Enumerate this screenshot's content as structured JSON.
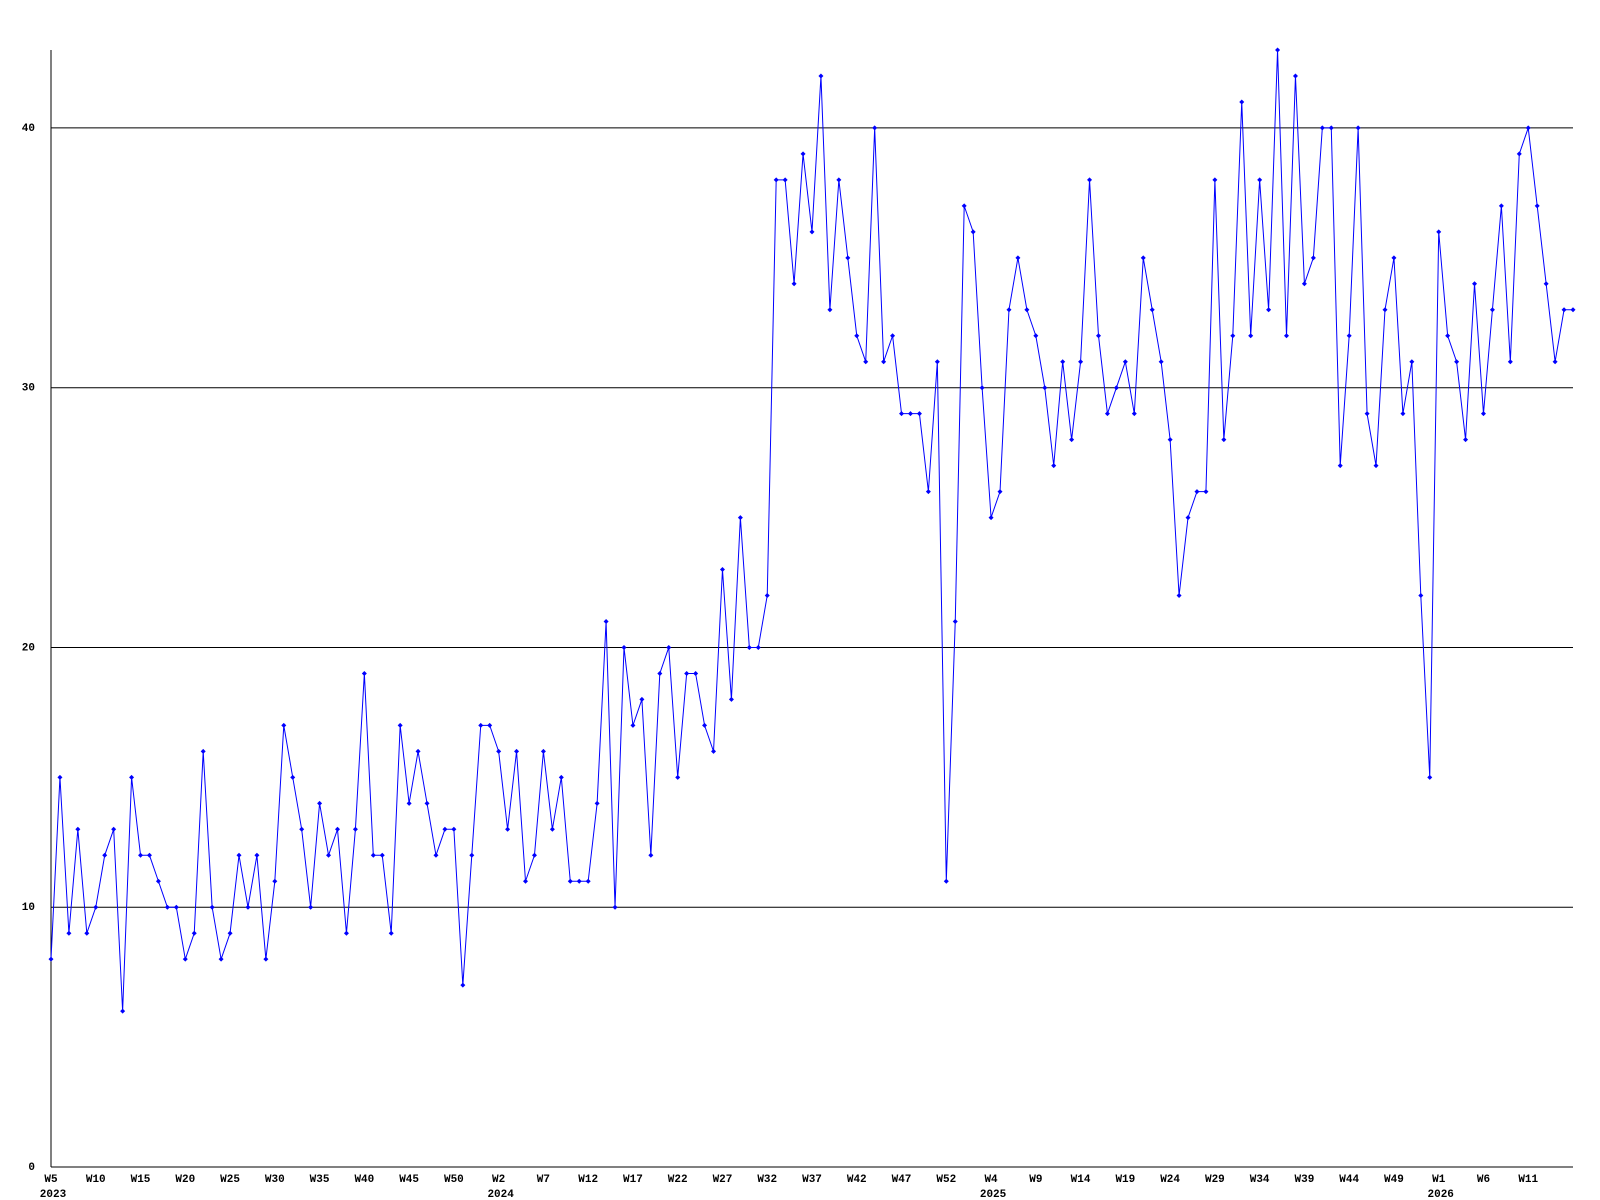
{
  "chart_data": {
    "type": "line",
    "categories": [
      "W5",
      null,
      null,
      null,
      null,
      "W10",
      null,
      null,
      null,
      null,
      "W15",
      null,
      null,
      null,
      null,
      "W20",
      null,
      null,
      null,
      null,
      "W25",
      null,
      null,
      null,
      null,
      "W30",
      null,
      null,
      null,
      null,
      "W35",
      null,
      null,
      null,
      null,
      "W40",
      null,
      null,
      null,
      null,
      "W45",
      null,
      null,
      null,
      null,
      "W50",
      null,
      null,
      null,
      null,
      "W2",
      null,
      null,
      null,
      null,
      "W7",
      null,
      null,
      null,
      null,
      "W12",
      null,
      null,
      null,
      null,
      "W17",
      null,
      null,
      null,
      null,
      "W22",
      null,
      null,
      null,
      null,
      "W27",
      null,
      null,
      null,
      null,
      "W32",
      null,
      null,
      null,
      null,
      "W37",
      null,
      null,
      null,
      null,
      "W42",
      null,
      null,
      null,
      null,
      "W47",
      null,
      null,
      null,
      null,
      "W52",
      null,
      null,
      null,
      null,
      "W4",
      null,
      null,
      null,
      null,
      "W9",
      null,
      null,
      null,
      null,
      "W14",
      null,
      null,
      null,
      null,
      "W19",
      null,
      null,
      null,
      null,
      "W24",
      null,
      null,
      null,
      null,
      "W29",
      null,
      null,
      null,
      null,
      "W34",
      null,
      null,
      null,
      null,
      "W39",
      null,
      null,
      null,
      null,
      "W44",
      null,
      null,
      null,
      null,
      "W49",
      null,
      null,
      null,
      null,
      "W1",
      null,
      null,
      null,
      null,
      "W6",
      null,
      null,
      null,
      null,
      "W11",
      null,
      null,
      null,
      null,
      null
    ],
    "category_years": [
      "2023",
      null,
      null,
      null,
      null,
      null,
      null,
      null,
      null,
      null,
      null,
      null,
      null,
      null,
      null,
      null,
      null,
      null,
      null,
      null,
      null,
      null,
      null,
      null,
      null,
      null,
      null,
      null,
      null,
      null,
      null,
      null,
      null,
      null,
      null,
      null,
      null,
      null,
      null,
      null,
      null,
      null,
      null,
      null,
      null,
      null,
      null,
      null,
      null,
      null,
      "2024",
      null,
      null,
      null,
      null,
      null,
      null,
      null,
      null,
      null,
      null,
      null,
      null,
      null,
      null,
      null,
      null,
      null,
      null,
      null,
      null,
      null,
      null,
      null,
      null,
      null,
      null,
      null,
      null,
      null,
      null,
      null,
      null,
      null,
      null,
      null,
      null,
      null,
      null,
      null,
      null,
      null,
      null,
      null,
      null,
      null,
      null,
      null,
      null,
      null,
      null,
      null,
      null,
      null,
      null,
      "2025",
      null,
      null,
      null,
      null,
      null,
      null,
      null,
      null,
      null,
      null,
      null,
      null,
      null,
      null,
      null,
      null,
      null,
      null,
      null,
      null,
      null,
      null,
      null,
      null,
      null,
      null,
      null,
      null,
      null,
      null,
      null,
      null,
      null,
      null,
      null,
      null,
      null,
      null,
      null,
      null,
      null,
      null,
      null,
      null,
      null,
      null,
      null,
      null,
      null,
      "2026",
      null,
      null,
      null,
      null,
      null,
      null,
      null,
      null,
      null,
      null,
      null,
      null,
      null,
      null,
      null
    ],
    "values": [
      8,
      15,
      9,
      13,
      9,
      10,
      12,
      13,
      6,
      15,
      12,
      12,
      11,
      10,
      10,
      8,
      9,
      16,
      10,
      8,
      9,
      12,
      10,
      12,
      8,
      11,
      17,
      15,
      13,
      10,
      14,
      12,
      13,
      9,
      13,
      19,
      12,
      12,
      9,
      17,
      14,
      16,
      14,
      12,
      13,
      13,
      7,
      12,
      17,
      17,
      16,
      13,
      16,
      11,
      12,
      16,
      13,
      15,
      11,
      11,
      11,
      14,
      21,
      10,
      20,
      17,
      18,
      12,
      19,
      20,
      15,
      19,
      19,
      17,
      16,
      23,
      18,
      25,
      20,
      20,
      22,
      38,
      38,
      34,
      39,
      36,
      42,
      33,
      38,
      35,
      32,
      31,
      40,
      31,
      32,
      29,
      29,
      29,
      26,
      31,
      11,
      21,
      37,
      36,
      30,
      25,
      26,
      33,
      35,
      33,
      32,
      30,
      27,
      31,
      28,
      31,
      38,
      32,
      29,
      30,
      31,
      29,
      35,
      33,
      31,
      28,
      22,
      25,
      26,
      26,
      38,
      28,
      32,
      41,
      32,
      38,
      33,
      43,
      32,
      42,
      34,
      35,
      40,
      40,
      27,
      32,
      40,
      29,
      27,
      33,
      35,
      29,
      31,
      22,
      15,
      36,
      32,
      31,
      28,
      34,
      29,
      33,
      37,
      31,
      39,
      40,
      37,
      34,
      31,
      33,
      33
    ],
    "color": "#0000ff",
    "ylim": [
      0,
      43
    ],
    "yticks": [
      0,
      10,
      20,
      30,
      40
    ],
    "grid": true
  }
}
